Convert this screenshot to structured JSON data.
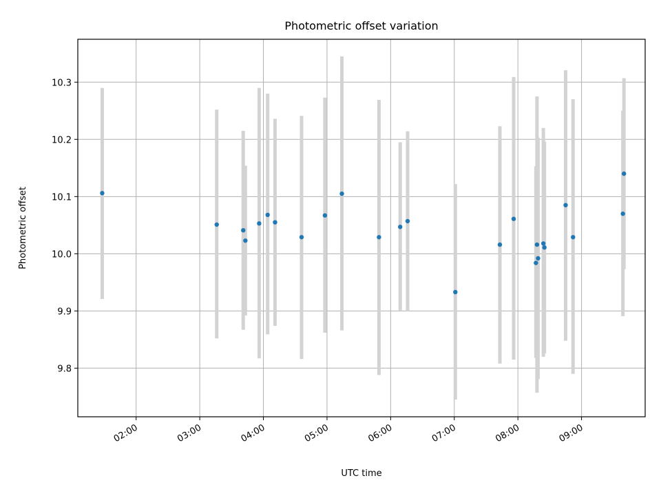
{
  "chart_data": {
    "type": "scatter",
    "title": "Photometric offset variation",
    "xlabel": "UTC time",
    "ylabel": "Photometric offset",
    "x_ticks": [
      "02:00",
      "03:00",
      "04:00",
      "05:00",
      "06:00",
      "07:00",
      "08:00",
      "09:00"
    ],
    "y_ticks": [
      "9.8",
      "9.9",
      "10.0",
      "10.1",
      "10.2",
      "10.3"
    ],
    "xlim": [
      "01:05",
      "10:00"
    ],
    "ylim": [
      9.715,
      10.375
    ],
    "grid": true,
    "colors": {
      "point": "#1f77b4",
      "errorbar": "#d3d3d3",
      "grid": "#b0b0b0"
    },
    "points": [
      {
        "t": "01:28",
        "y": 10.106,
        "ylow": 9.921,
        "yhigh": 10.29
      },
      {
        "t": "03:16",
        "y": 10.051,
        "ylow": 9.852,
        "yhigh": 10.252
      },
      {
        "t": "03:41",
        "y": 10.041,
        "ylow": 9.867,
        "yhigh": 10.215
      },
      {
        "t": "03:43",
        "y": 10.023,
        "ylow": 9.892,
        "yhigh": 10.154
      },
      {
        "t": "03:56",
        "y": 10.053,
        "ylow": 9.817,
        "yhigh": 10.29
      },
      {
        "t": "04:04",
        "y": 10.068,
        "ylow": 9.859,
        "yhigh": 10.28
      },
      {
        "t": "04:11",
        "y": 10.055,
        "ylow": 9.874,
        "yhigh": 10.236
      },
      {
        "t": "04:36",
        "y": 10.029,
        "ylow": 9.816,
        "yhigh": 10.241
      },
      {
        "t": "04:58",
        "y": 10.067,
        "ylow": 9.862,
        "yhigh": 10.273
      },
      {
        "t": "05:14",
        "y": 10.105,
        "ylow": 9.866,
        "yhigh": 10.345
      },
      {
        "t": "05:49",
        "y": 10.029,
        "ylow": 9.788,
        "yhigh": 10.269
      },
      {
        "t": "06:09",
        "y": 10.047,
        "ylow": 9.901,
        "yhigh": 10.195
      },
      {
        "t": "06:16",
        "y": 10.057,
        "ylow": 9.9,
        "yhigh": 10.214
      },
      {
        "t": "07:01",
        "y": 9.933,
        "ylow": 9.745,
        "yhigh": 10.122
      },
      {
        "t": "07:43",
        "y": 10.016,
        "ylow": 9.808,
        "yhigh": 10.223
      },
      {
        "t": "07:56",
        "y": 10.061,
        "ylow": 9.815,
        "yhigh": 10.309
      },
      {
        "t": "08:17",
        "y": 9.984,
        "ylow": 9.818,
        "yhigh": 10.153
      },
      {
        "t": "08:18",
        "y": 10.016,
        "ylow": 9.757,
        "yhigh": 10.275
      },
      {
        "t": "08:19",
        "y": 9.992,
        "ylow": 9.781,
        "yhigh": 10.203
      },
      {
        "t": "08:24",
        "y": 10.018,
        "ylow": 9.82,
        "yhigh": 10.22
      },
      {
        "t": "08:25",
        "y": 10.011,
        "ylow": 9.826,
        "yhigh": 10.196
      },
      {
        "t": "08:45",
        "y": 10.085,
        "ylow": 9.848,
        "yhigh": 10.321
      },
      {
        "t": "08:52",
        "y": 10.029,
        "ylow": 9.79,
        "yhigh": 10.27
      },
      {
        "t": "09:39",
        "y": 10.07,
        "ylow": 9.891,
        "yhigh": 10.25
      },
      {
        "t": "09:40",
        "y": 10.14,
        "ylow": 9.973,
        "yhigh": 10.307
      }
    ]
  }
}
